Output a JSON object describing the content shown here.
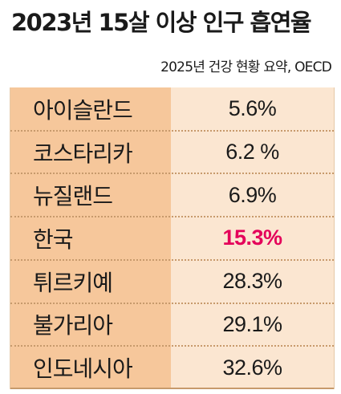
{
  "chart_data": {
    "type": "table",
    "title": "2023년 15살 이상 인구 흡연율",
    "subtitle": "2025년 건강 현황 요약, OECD",
    "rows": [
      {
        "country": "아이슬란드",
        "value_label": "5.6%",
        "value": 5.6
      },
      {
        "country": "코스타리카",
        "value_label": "6.2 %",
        "value": 6.2
      },
      {
        "country": "뉴질랜드",
        "value_label": "6.9%",
        "value": 6.9
      },
      {
        "country": "한국",
        "value_label": "15.3%",
        "value": 15.3,
        "highlight": true
      },
      {
        "country": "튀르키예",
        "value_label": "28.3%",
        "value": 28.3
      },
      {
        "country": "불가리아",
        "value_label": "29.1%",
        "value": 29.1
      },
      {
        "country": "인도네시아",
        "value_label": "32.6%",
        "value": 32.6
      }
    ],
    "colors": {
      "name_column": "#f6c79b",
      "value_column": "#fbe6d1",
      "highlight": "#e4005a",
      "divider": "#c79a6c"
    }
  }
}
